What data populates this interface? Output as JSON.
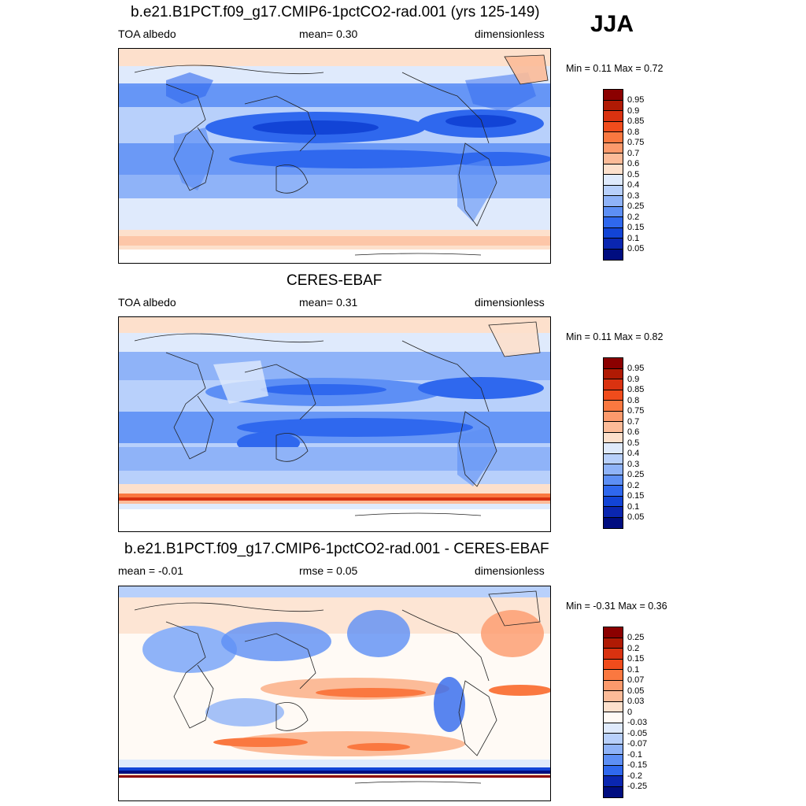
{
  "season": "JJA",
  "panels": [
    {
      "title": "b.e21.B1PCT.f09_g17.CMIP6-1pctCO2-rad.001 (yrs 125-149)",
      "left_label": "TOA albedo",
      "center_label": "mean=   0.30",
      "right_label": "dimensionless",
      "minmax": "Min =   0.11 Max =   0.72"
    },
    {
      "title": "CERES-EBAF",
      "left_label": "TOA albedo",
      "center_label": "mean=   0.31",
      "right_label": "dimensionless",
      "minmax": "Min =   0.11 Max =   0.82"
    },
    {
      "title": "b.e21.B1PCT.f09_g17.CMIP6-1pctCO2-rad.001 - CERES-EBAF",
      "left_label": "mean =  -0.01",
      "center_label": "rmse =   0.05",
      "right_label": "dimensionless",
      "minmax": "Min =  -0.31 Max =   0.36"
    }
  ],
  "colorbar_albedo": {
    "labels": [
      "0.95",
      "0.9",
      "0.85",
      "0.8",
      "0.75",
      "0.7",
      "0.6",
      "0.5",
      "0.4",
      "0.3",
      "0.25",
      "0.2",
      "0.15",
      "0.1",
      "0.05"
    ],
    "colors": [
      "#8b0000",
      "#b01a04",
      "#d93210",
      "#f04c1c",
      "#fa7840",
      "#fc9a6c",
      "#fcbb98",
      "#fde0cc",
      "#dfeafc",
      "#b8d0fb",
      "#8fb3f8",
      "#5d8ff5",
      "#2f68ee",
      "#1244d6",
      "#0a26b0",
      "#000d80"
    ]
  },
  "colorbar_diff": {
    "labels": [
      "0.25",
      "0.2",
      "0.15",
      "0.1",
      "0.07",
      "0.05",
      "0.03",
      "0",
      "-0.03",
      "-0.05",
      "-0.07",
      "-0.1",
      "-0.15",
      "-0.2",
      "-0.25"
    ],
    "colors": [
      "#8b0000",
      "#b01a04",
      "#d93210",
      "#f04c1c",
      "#fa7840",
      "#fc9a6c",
      "#fcbb98",
      "#fde0cc",
      "#fffaf5",
      "#dfeafc",
      "#b8d0fb",
      "#8fb3f8",
      "#5d8ff5",
      "#2f68ee",
      "#0a26b0",
      "#000d80"
    ]
  }
}
